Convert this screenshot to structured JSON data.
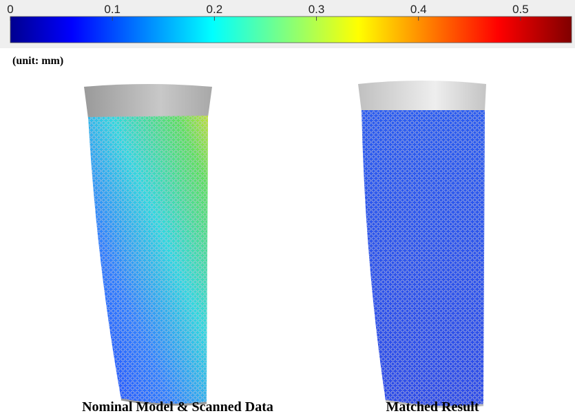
{
  "colorbar": {
    "lim": [
      0,
      0.55
    ],
    "ticks": [
      0,
      0.1,
      0.2,
      0.3,
      0.4,
      0.5
    ]
  },
  "unit_label": "(unit: mm)",
  "captions": [
    "Nominal Model & Scanned Data",
    "Matched Result"
  ]
}
